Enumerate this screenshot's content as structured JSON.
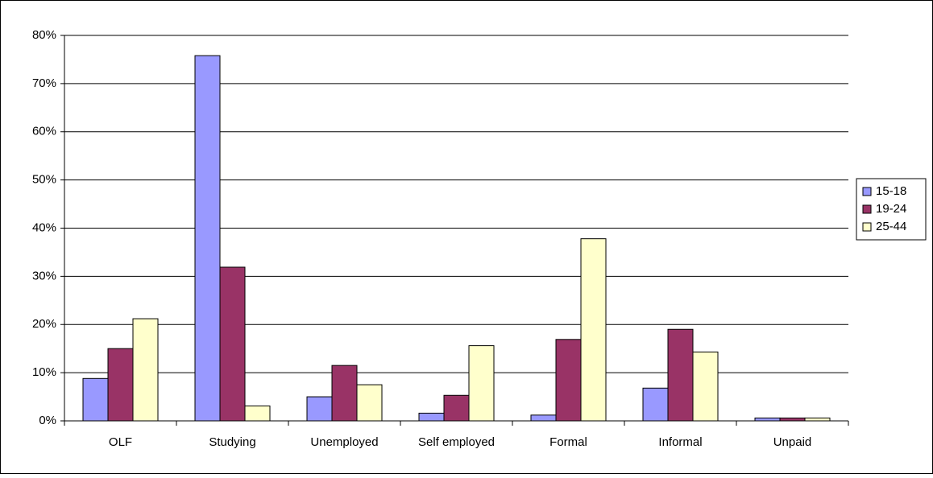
{
  "chart_data": {
    "type": "bar",
    "categories": [
      "OLF",
      "Studying",
      "Unemployed",
      "Self employed",
      "Formal",
      "Informal",
      "Unpaid"
    ],
    "series": [
      {
        "name": "15-18",
        "color": "#9999ff",
        "values": [
          8.8,
          75.8,
          5.0,
          1.6,
          1.2,
          6.8,
          0.6
        ]
      },
      {
        "name": "19-24",
        "color": "#993366",
        "values": [
          15.0,
          31.9,
          11.5,
          5.3,
          16.9,
          19.0,
          0.6
        ]
      },
      {
        "name": "25-44",
        "color": "#ffffcc",
        "values": [
          21.2,
          3.1,
          7.5,
          15.6,
          37.8,
          14.3,
          0.6
        ]
      }
    ],
    "ylim": [
      0,
      80
    ],
    "yticks": [
      {
        "value": 0,
        "label": "0%"
      },
      {
        "value": 10,
        "label": "10%"
      },
      {
        "value": 20,
        "label": "20%"
      },
      {
        "value": 30,
        "label": "30%"
      },
      {
        "value": 40,
        "label": "40%"
      },
      {
        "value": 50,
        "label": "50%"
      },
      {
        "value": 60,
        "label": "60%"
      },
      {
        "value": 70,
        "label": "70%"
      },
      {
        "value": 80,
        "label": "80%"
      }
    ],
    "grid": true,
    "legend": "right"
  }
}
